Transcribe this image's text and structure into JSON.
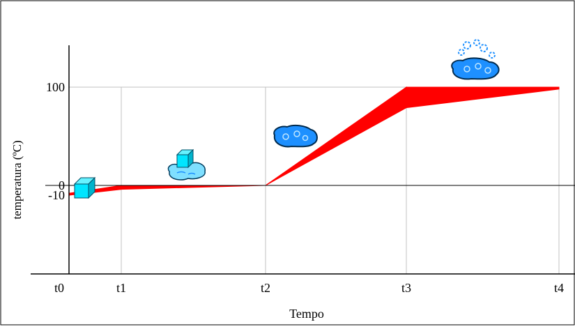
{
  "chart_data": {
    "type": "area",
    "title": "",
    "xlabel": "Tempo",
    "ylabel": "temperatura (ºC)",
    "x_categories": [
      "t0",
      "t1",
      "t2",
      "t3",
      "t4"
    ],
    "y_ticks": [
      {
        "label": "100",
        "value": 100
      },
      {
        "label": "0",
        "value": 0
      },
      {
        "label": "-10",
        "value": -10
      }
    ],
    "ylim": [
      -30,
      140
    ],
    "grid": "vertical lines at t1-t4, horizontal line at 100",
    "series": [
      {
        "upper": [
          {
            "x": "t0",
            "value": -8
          },
          {
            "x": "t1",
            "value": 0
          },
          {
            "x": "t2",
            "value": 0
          },
          {
            "x": "t3",
            "value": 100
          },
          {
            "x": "t4",
            "value": 100
          }
        ],
        "lower": [
          {
            "x": "t0",
            "value": -10
          },
          {
            "x": "t1",
            "value": -4
          },
          {
            "x": "t2",
            "value": 0
          },
          {
            "x": "t3",
            "value": 79
          },
          {
            "x": "t4",
            "value": 98
          }
        ],
        "color": "#ff0000"
      }
    ],
    "annotations": [
      {
        "name": "ice-cube-icon",
        "state": "solid",
        "near": "t0"
      },
      {
        "name": "melting-ice-icon",
        "state": "solid-liquid",
        "near": "t1-t2"
      },
      {
        "name": "water-puddle-icon",
        "state": "liquid",
        "near": "t2"
      },
      {
        "name": "boiling-water-icon",
        "state": "liquid-gas",
        "near": "t3-t4"
      }
    ]
  },
  "colors": {
    "band": "#ff0000",
    "axis": "#000000",
    "grid": "#c0c0c0",
    "ice": "#00e5ff",
    "water": "#1e90ff"
  }
}
